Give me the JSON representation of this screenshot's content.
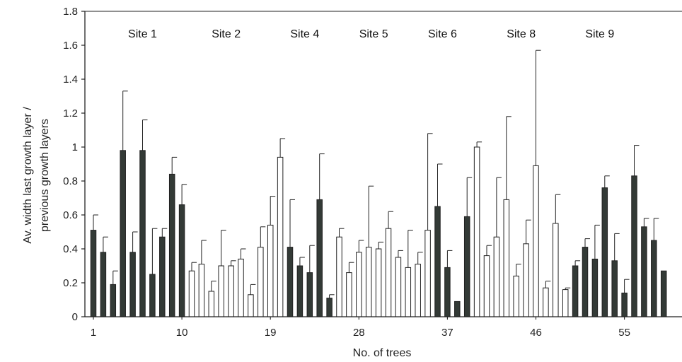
{
  "chart_data": {
    "type": "bar",
    "ylabel_line1": "Av. width last growth layer /",
    "ylabel_line2": "previous growth layers",
    "xlabel": "No. of trees",
    "ylim": [
      0,
      1.8
    ],
    "yticks": [
      "0",
      "0.2",
      "0.4",
      "0.6",
      "0.8",
      "1",
      "1.2",
      "1.4",
      "1.6",
      "1.8"
    ],
    "xtick_labels": [
      {
        "tree": 1,
        "label": "1"
      },
      {
        "tree": 10,
        "label": "10"
      },
      {
        "tree": 19,
        "label": "19"
      },
      {
        "tree": 28,
        "label": "28"
      },
      {
        "tree": 37,
        "label": "37"
      },
      {
        "tree": 46,
        "label": "46"
      },
      {
        "tree": 55,
        "label": "55"
      }
    ],
    "sites": [
      {
        "label": "Site 1",
        "center_tree": 6
      },
      {
        "label": "Site 2",
        "center_tree": 14.5
      },
      {
        "label": "Site 4",
        "center_tree": 22.5
      },
      {
        "label": "Site 5",
        "center_tree": 29.5
      },
      {
        "label": "Site 6",
        "center_tree": 36.5
      },
      {
        "label": "Site 8",
        "center_tree": 44.5
      },
      {
        "label": "Site 9",
        "center_tree": 52.5
      }
    ],
    "colors": {
      "filled": "#333a36",
      "open": "#ffffff",
      "stroke": "#222222"
    },
    "bars": [
      {
        "tree": 1,
        "value": 0.51,
        "error": 0.09,
        "fill": "dark"
      },
      {
        "tree": 2,
        "value": 0.38,
        "error": 0.09,
        "fill": "dark"
      },
      {
        "tree": 3,
        "value": 0.19,
        "error": 0.08,
        "fill": "dark"
      },
      {
        "tree": 4,
        "value": 0.98,
        "error": 0.35,
        "fill": "dark"
      },
      {
        "tree": 5,
        "value": 0.38,
        "error": 0.12,
        "fill": "dark"
      },
      {
        "tree": 6,
        "value": 0.98,
        "error": 0.18,
        "fill": "dark"
      },
      {
        "tree": 7,
        "value": 0.25,
        "error": 0.27,
        "fill": "dark"
      },
      {
        "tree": 8,
        "value": 0.47,
        "error": 0.05,
        "fill": "dark"
      },
      {
        "tree": 9,
        "value": 0.84,
        "error": 0.1,
        "fill": "dark"
      },
      {
        "tree": 10,
        "value": 0.66,
        "error": 0.12,
        "fill": "dark"
      },
      {
        "tree": 11,
        "value": 0.27,
        "error": 0.05,
        "fill": "open"
      },
      {
        "tree": 12,
        "value": 0.31,
        "error": 0.14,
        "fill": "open"
      },
      {
        "tree": 13,
        "value": 0.15,
        "error": 0.06,
        "fill": "open"
      },
      {
        "tree": 14,
        "value": 0.3,
        "error": 0.21,
        "fill": "open"
      },
      {
        "tree": 15,
        "value": 0.3,
        "error": 0.03,
        "fill": "open"
      },
      {
        "tree": 16,
        "value": 0.34,
        "error": 0.06,
        "fill": "open"
      },
      {
        "tree": 17,
        "value": 0.13,
        "error": 0.06,
        "fill": "open"
      },
      {
        "tree": 18,
        "value": 0.41,
        "error": 0.12,
        "fill": "open"
      },
      {
        "tree": 19,
        "value": 0.54,
        "error": 0.17,
        "fill": "open"
      },
      {
        "tree": 20,
        "value": 0.94,
        "error": 0.11,
        "fill": "open"
      },
      {
        "tree": 21,
        "value": 0.41,
        "error": 0.28,
        "fill": "dark"
      },
      {
        "tree": 22,
        "value": 0.3,
        "error": 0.05,
        "fill": "dark"
      },
      {
        "tree": 23,
        "value": 0.26,
        "error": 0.16,
        "fill": "dark"
      },
      {
        "tree": 24,
        "value": 0.69,
        "error": 0.27,
        "fill": "dark"
      },
      {
        "tree": 25,
        "value": 0.11,
        "error": 0.02,
        "fill": "dark"
      },
      {
        "tree": 26,
        "value": 0.47,
        "error": 0.05,
        "fill": "open"
      },
      {
        "tree": 27,
        "value": 0.26,
        "error": 0.06,
        "fill": "open"
      },
      {
        "tree": 28,
        "value": 0.38,
        "error": 0.07,
        "fill": "open"
      },
      {
        "tree": 29,
        "value": 0.41,
        "error": 0.36,
        "fill": "open"
      },
      {
        "tree": 30,
        "value": 0.4,
        "error": 0.04,
        "fill": "open"
      },
      {
        "tree": 31,
        "value": 0.52,
        "error": 0.1,
        "fill": "open"
      },
      {
        "tree": 32,
        "value": 0.35,
        "error": 0.04,
        "fill": "open"
      },
      {
        "tree": 33,
        "value": 0.29,
        "error": 0.22,
        "fill": "open"
      },
      {
        "tree": 34,
        "value": 0.31,
        "error": 0.07,
        "fill": "open"
      },
      {
        "tree": 35,
        "value": 0.51,
        "error": 0.57,
        "fill": "open"
      },
      {
        "tree": 36,
        "value": 0.65,
        "error": 0.25,
        "fill": "dark"
      },
      {
        "tree": 37,
        "value": 0.29,
        "error": 0.1,
        "fill": "dark"
      },
      {
        "tree": 38,
        "value": 0.09,
        "error": 0.0,
        "fill": "dark"
      },
      {
        "tree": 39,
        "value": 0.59,
        "error": 0.23,
        "fill": "dark"
      },
      {
        "tree": 40,
        "value": 1.0,
        "error": 0.03,
        "fill": "open"
      },
      {
        "tree": 41,
        "value": 0.36,
        "error": 0.06,
        "fill": "open"
      },
      {
        "tree": 42,
        "value": 0.47,
        "error": 0.35,
        "fill": "open"
      },
      {
        "tree": 43,
        "value": 0.69,
        "error": 0.49,
        "fill": "open"
      },
      {
        "tree": 44,
        "value": 0.24,
        "error": 0.07,
        "fill": "open"
      },
      {
        "tree": 45,
        "value": 0.43,
        "error": 0.14,
        "fill": "open"
      },
      {
        "tree": 46,
        "value": 0.89,
        "error": 0.68,
        "fill": "open"
      },
      {
        "tree": 47,
        "value": 0.17,
        "error": 0.04,
        "fill": "open"
      },
      {
        "tree": 48,
        "value": 0.55,
        "error": 0.17,
        "fill": "open"
      },
      {
        "tree": 49,
        "value": 0.16,
        "error": 0.01,
        "fill": "open"
      },
      {
        "tree": 50,
        "value": 0.3,
        "error": 0.03,
        "fill": "dark"
      },
      {
        "tree": 51,
        "value": 0.41,
        "error": 0.05,
        "fill": "dark"
      },
      {
        "tree": 52,
        "value": 0.34,
        "error": 0.2,
        "fill": "dark"
      },
      {
        "tree": 53,
        "value": 0.76,
        "error": 0.07,
        "fill": "dark"
      },
      {
        "tree": 54,
        "value": 0.33,
        "error": 0.16,
        "fill": "dark"
      },
      {
        "tree": 55,
        "value": 0.14,
        "error": 0.08,
        "fill": "dark"
      },
      {
        "tree": 56,
        "value": 0.83,
        "error": 0.18,
        "fill": "dark"
      },
      {
        "tree": 57,
        "value": 0.53,
        "error": 0.05,
        "fill": "dark"
      },
      {
        "tree": 58,
        "value": 0.45,
        "error": 0.13,
        "fill": "dark"
      },
      {
        "tree": 59,
        "value": 0.27,
        "error": 0.0,
        "fill": "dark"
      }
    ]
  }
}
